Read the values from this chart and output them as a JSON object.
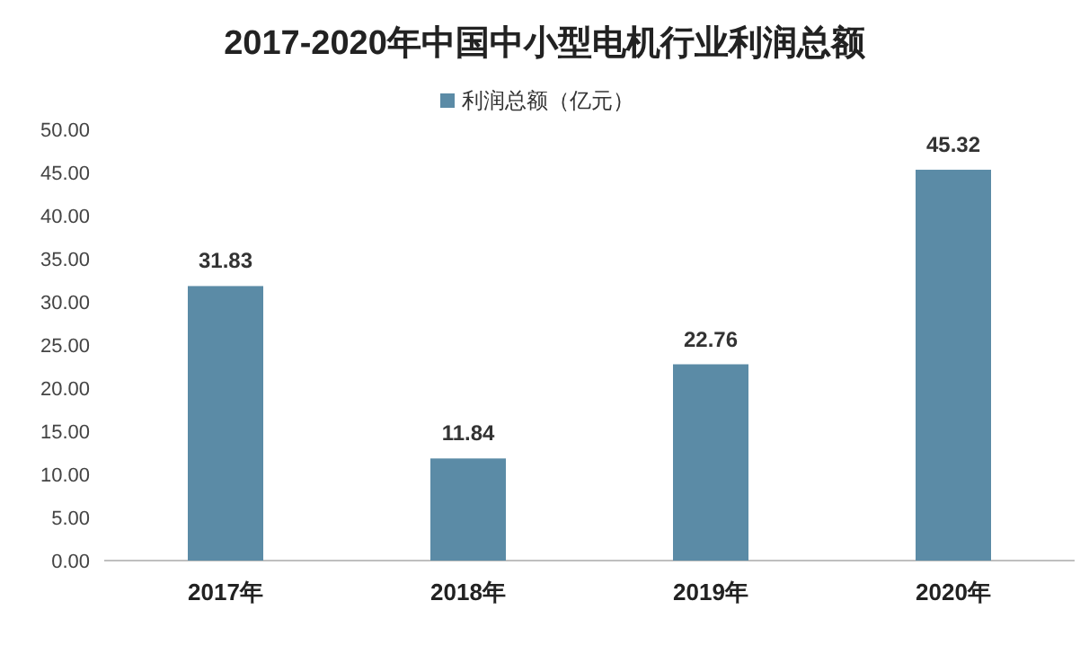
{
  "chart_data": {
    "type": "bar",
    "title": "2017-2020年中国中小型电机行业利润总额",
    "categories": [
      "2017年",
      "2018年",
      "2019年",
      "2020年"
    ],
    "series": [
      {
        "name": "利润总额（亿元）",
        "color": "#5b8ba6",
        "values": [
          31.83,
          11.84,
          22.76,
          45.32
        ]
      }
    ],
    "ylim": [
      0,
      50
    ],
    "yticks": [
      {
        "value": 0,
        "label": "0.00"
      },
      {
        "value": 5,
        "label": "5.00"
      },
      {
        "value": 10,
        "label": "10.00"
      },
      {
        "value": 15,
        "label": "15.00"
      },
      {
        "value": 20,
        "label": "20.00"
      },
      {
        "value": 25,
        "label": "25.00"
      },
      {
        "value": 30,
        "label": "30.00"
      },
      {
        "value": 35,
        "label": "35.00"
      },
      {
        "value": 40,
        "label": "40.00"
      },
      {
        "value": 45,
        "label": "45.00"
      },
      {
        "value": 50,
        "label": "50.00"
      }
    ],
    "data_labels": true,
    "legend": "top"
  }
}
